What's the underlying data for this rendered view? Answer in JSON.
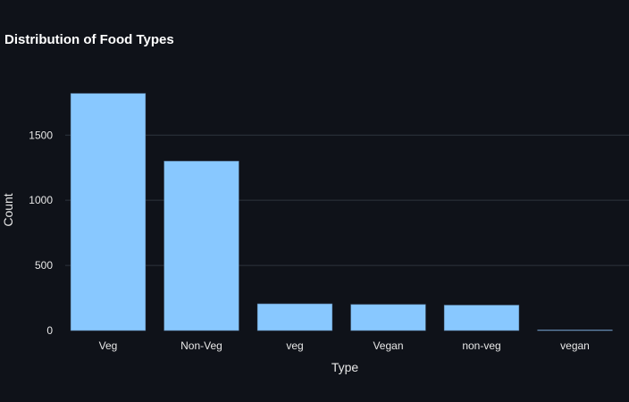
{
  "chart_data": {
    "type": "bar",
    "title": "Distribution of Food Types",
    "xlabel": "Type",
    "ylabel": "Count",
    "categories": [
      "Veg",
      "Non-Veg",
      "veg",
      "Vegan",
      "non-veg",
      "vegan"
    ],
    "values": [
      1820,
      1300,
      205,
      200,
      195,
      5
    ],
    "ylim": [
      0,
      1920
    ],
    "yticks": [
      0,
      500,
      1000,
      1500
    ],
    "grid": true,
    "legend": "none",
    "colors": {
      "bar": "#88c8ff",
      "background": "#0f1219",
      "grid": "#2f343d"
    }
  }
}
